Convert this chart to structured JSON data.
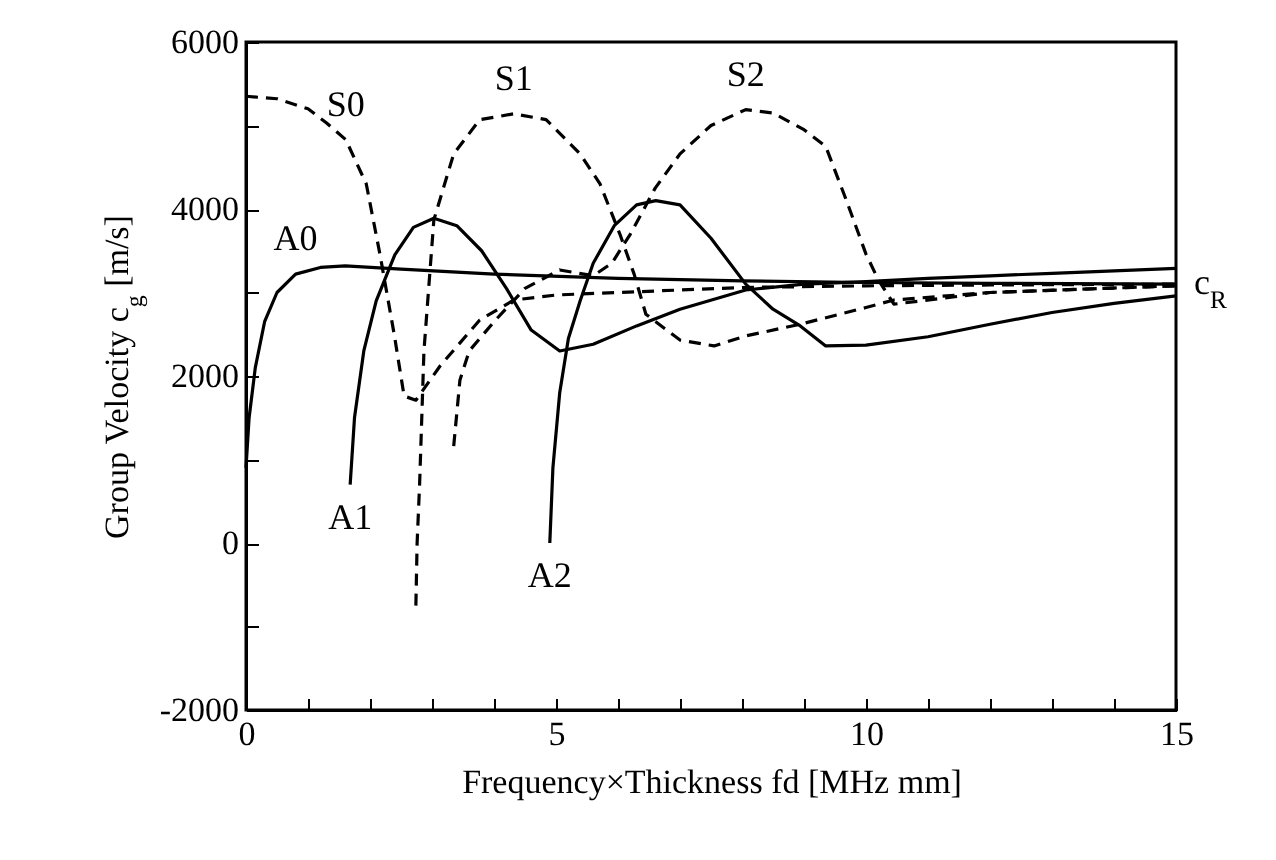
{
  "chart_data": {
    "type": "line",
    "xlabel": "Frequency×Thickness fd [MHz mm]",
    "ylabel": "Group Velocity c$_{g}$ [m/s]",
    "xlim": [
      0,
      15
    ],
    "ylim": [
      -2000,
      6000
    ],
    "xticks": [
      0,
      {
        "value": 1,
        "label": null
      },
      {
        "value": 2,
        "label": null
      },
      {
        "value": 3,
        "label": null
      },
      {
        "value": 4,
        "label": null
      },
      5,
      {
        "value": 6,
        "label": null
      },
      {
        "value": 7,
        "label": null
      },
      {
        "value": 8,
        "label": null
      },
      {
        "value": 9,
        "label": null
      },
      10,
      {
        "value": 11,
        "label": null
      },
      {
        "value": 12,
        "label": null
      },
      {
        "value": 13,
        "label": null
      },
      {
        "value": 14,
        "label": null
      },
      15
    ],
    "yticks": [
      -2000,
      {
        "value": -1000,
        "label": null
      },
      0,
      {
        "value": 1000,
        "label": null
      },
      2000,
      {
        "value": 3000,
        "label": null
      },
      4000,
      {
        "value": 5000,
        "label": null
      },
      6000
    ],
    "grid": false,
    "legend": false,
    "marker": "none",
    "series": [
      {
        "color": "#000000",
        "line_style": "solid",
        "x": [
          0,
          0.05,
          0.15,
          0.3,
          0.5,
          0.8,
          1.2,
          1.6,
          2.5,
          4,
          6,
          8,
          10,
          12,
          15
        ],
        "values": [
          900,
          1500,
          2100,
          2650,
          3000,
          3220,
          3300,
          3320,
          3280,
          3220,
          3170,
          3140,
          3120,
          3110,
          3100
        ]
      },
      {
        "color": "#000000",
        "line_style": "solid",
        "x": [
          1.68,
          1.75,
          1.9,
          2.1,
          2.4,
          2.7,
          3.03,
          3.4,
          3.8,
          4.2,
          4.6,
          5.06,
          5.6,
          6.3,
          7,
          8.06,
          9,
          10,
          11,
          12,
          13,
          14,
          15
        ],
        "values": [
          700,
          1500,
          2300,
          2900,
          3450,
          3780,
          3890,
          3800,
          3500,
          3050,
          2550,
          2300,
          2380,
          2600,
          2800,
          3030,
          3100,
          3130,
          3170,
          3200,
          3230,
          3260,
          3290
        ]
      },
      {
        "color": "#000000",
        "line_style": "solid",
        "x": [
          4.9,
          4.95,
          5.06,
          5.2,
          5.39,
          5.6,
          5.94,
          6.3,
          6.61,
          7,
          7.5,
          8.06,
          8.5,
          8.94,
          9.35,
          10,
          11,
          12,
          13,
          14,
          15
        ],
        "values": [
          0,
          900,
          1800,
          2450,
          2900,
          3350,
          3800,
          4050,
          4100,
          4050,
          3650,
          3100,
          2800,
          2600,
          2360,
          2370,
          2470,
          2620,
          2760,
          2870,
          2960
        ]
      },
      {
        "color": "#000000",
        "line_style": "dashed",
        "x": [
          0,
          0.5,
          1,
          1.3,
          1.61,
          1.94,
          2.16,
          2.39,
          2.55,
          2.74,
          3.13,
          3.77,
          4.32,
          5,
          6,
          8,
          10,
          12,
          15
        ],
        "values": [
          5350,
          5320,
          5200,
          5030,
          4830,
          4300,
          3460,
          2500,
          1760,
          1710,
          2120,
          2670,
          2910,
          2970,
          3000,
          3060,
          3080,
          3090,
          3100
        ]
      },
      {
        "color": "#000000",
        "line_style": "dashed",
        "x": [
          2.74,
          2.76,
          2.8,
          2.87,
          3.03,
          3.35,
          3.77,
          4.32,
          4.84,
          5.39,
          5.71,
          6.03,
          6.26,
          6.45,
          7,
          7.55,
          8.06,
          8.94,
          10,
          10.45,
          12,
          15
        ],
        "values": [
          -750,
          0,
          700,
          2300,
          3870,
          4660,
          5070,
          5140,
          5070,
          4660,
          4300,
          3700,
          3220,
          2740,
          2430,
          2360,
          2480,
          2620,
          2820,
          2910,
          3000,
          3080
        ]
      },
      {
        "color": "#000000",
        "line_style": "dashed",
        "x": [
          3.35,
          3.45,
          3.6,
          4,
          4.5,
          5.06,
          5.6,
          5.9,
          6.2,
          6.6,
          7,
          7.5,
          8.06,
          8.5,
          9,
          9.35,
          9.68,
          10,
          10.2,
          10.45,
          12,
          15
        ],
        "values": [
          1160,
          1950,
          2300,
          2650,
          3050,
          3270,
          3200,
          3350,
          3700,
          4250,
          4660,
          5000,
          5190,
          5150,
          4950,
          4750,
          4110,
          3460,
          3150,
          2860,
          3000,
          3080
        ]
      }
    ],
    "annotations": [
      {
        "text": "S0",
        "x": 1.61,
        "y": 4830
      },
      {
        "text": "S1",
        "x": 4.32,
        "y": 5140
      },
      {
        "text": "S2",
        "x": 8.06,
        "y": 5190
      },
      {
        "text": "A0",
        "x": 0.8,
        "y": 3220
      },
      {
        "text": "A1",
        "x": 1.68,
        "y": 700
      },
      {
        "text": "A2",
        "x": 4.9,
        "y": 0
      },
      {
        "text": "c$_{R}$",
        "x": 15,
        "y": 3100
      }
    ]
  }
}
